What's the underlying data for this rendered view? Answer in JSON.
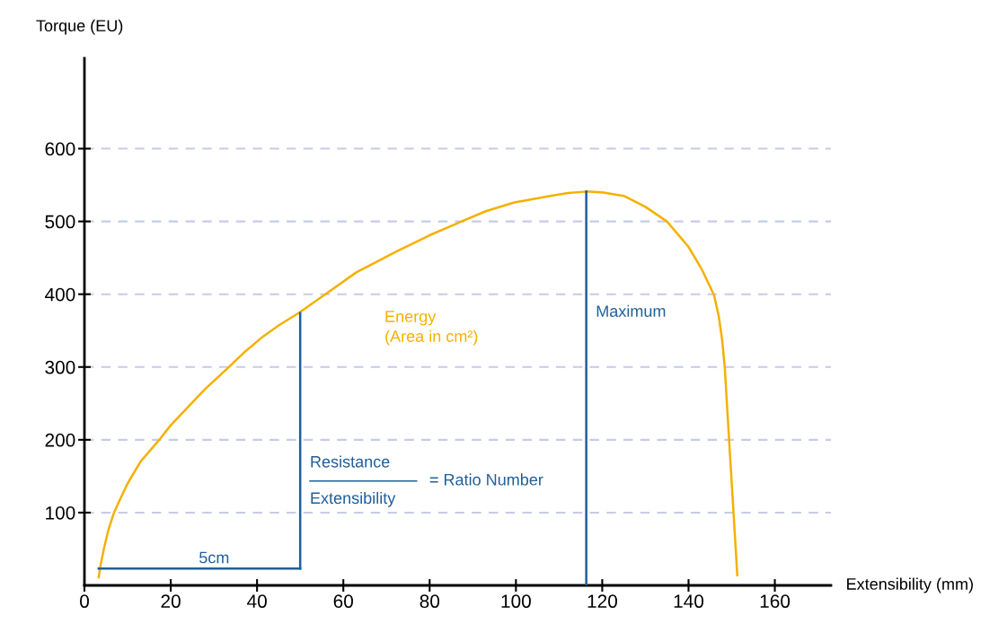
{
  "chart_data": {
    "type": "line",
    "xlabel": "Extensibility (mm)",
    "ylabel": "Torque (EU)",
    "series": [
      {
        "color": "#f5b000",
        "x": [
          3.3,
          3.8,
          4.5,
          5.5,
          6.8,
          8,
          10,
          13,
          17.2,
          20,
          24,
          28,
          33.3,
          37,
          41,
          45,
          49.6,
          55.4,
          63,
          72.4,
          80,
          87.4,
          93,
          99.6,
          108,
          112,
          116.3,
          120,
          125,
          130,
          135,
          140,
          143,
          145.9,
          147,
          147.8,
          148.4,
          149.4,
          151.3
        ],
        "values": [
          11,
          30,
          50,
          75,
          99,
          115,
          140,
          170,
          199,
          220,
          245,
          270,
          299,
          320,
          340,
          357,
          374,
          398,
          430,
          459,
          481,
          500,
          514,
          526,
          535,
          539,
          541,
          540,
          535,
          520,
          500,
          465,
          435,
          399,
          370,
          337,
          299,
          200,
          14
        ]
      },
      {
        "color": "#1f5f9a",
        "x": [
          50,
          50
        ],
        "values": [
          23,
          374
        ]
      },
      {
        "color": "#1f5f9a",
        "x": [
          3.3,
          50
        ],
        "values": [
          23,
          23
        ]
      },
      {
        "color": "#1f5f9a",
        "x": [
          116.3,
          116.3
        ],
        "values": [
          0,
          541
        ]
      }
    ],
    "annotations": [
      "Energy\n(Area in cm²)",
      "Maximum",
      {
        "text": "5cm",
        "x": 26.5,
        "y": 26
      },
      "Resistance",
      "Extensibility",
      "= Ratio Number"
    ],
    "xlim": [
      0,
      173
    ],
    "ylim": [
      0,
      724
    ],
    "xticks": [
      0,
      20,
      40,
      60,
      80,
      100,
      120,
      140,
      160
    ],
    "yticks": [
      100,
      200,
      300,
      400,
      500,
      600
    ],
    "grid": "y",
    "line_style": "solid"
  }
}
